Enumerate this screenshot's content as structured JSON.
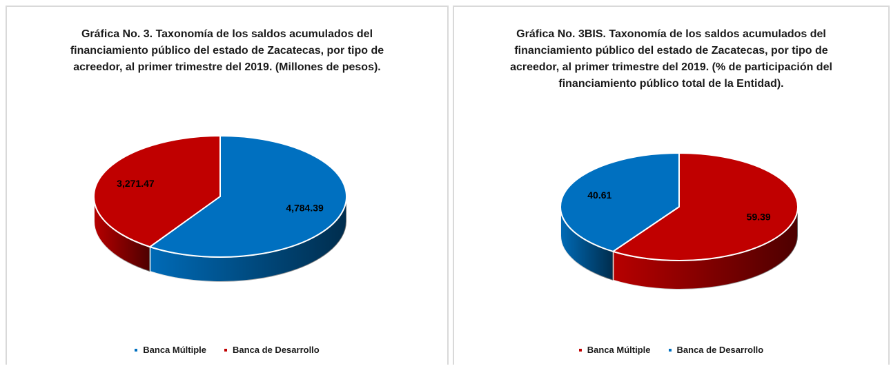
{
  "chart_data": [
    {
      "type": "pie",
      "title": "Gráfica No. 3. Taxonomía de los saldos acumulados del financiamiento público del estado de Zacatecas, por tipo de acreedor, al primer trimestre del 2019. (Millones de pesos).",
      "categories": [
        "Banca Múltiple",
        "Banca de Desarrollo"
      ],
      "values": [
        4784.39,
        3271.47
      ],
      "value_labels": [
        "4,784.39",
        "3,271.47"
      ],
      "colors": [
        "#0070c0",
        "#c00000"
      ]
    },
    {
      "type": "pie",
      "title": "Gráfica No. 3BIS. Taxonomía de los saldos acumulados del financiamiento público del estado de Zacatecas, por tipo de acreedor, al primer trimestre del 2019. (% de participación del financiamiento público total de la Entidad).",
      "categories": [
        "Banca Múltiple",
        "Banca de Desarrollo"
      ],
      "values": [
        59.39,
        40.61
      ],
      "colors": [
        "#c00000",
        "#0070c0"
      ]
    }
  ]
}
